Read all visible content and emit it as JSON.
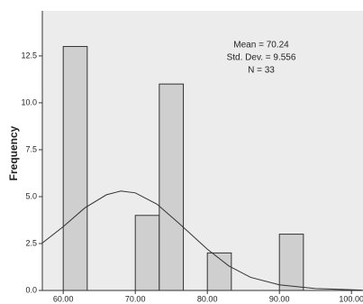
{
  "chart_data": {
    "type": "histogram",
    "y_label": "Frequency",
    "annotations": [
      "Mean = 70.24",
      "Std. Dev. = 9.556",
      "N = 33"
    ],
    "bins": [
      60,
      63.33,
      66.67,
      70,
      73.33,
      76.67,
      80,
      83.33,
      86.67,
      90,
      93.33
    ],
    "values": [
      13,
      0,
      0,
      4,
      11,
      0,
      2,
      0,
      0,
      3
    ],
    "color": "#cfcfcf",
    "curve": {
      "x": [
        57,
        60,
        63,
        66,
        68,
        70,
        73,
        76,
        80,
        83,
        86,
        90,
        95,
        101.5
      ],
      "values": [
        2.5,
        3.4,
        4.4,
        5.1,
        5.3,
        5.2,
        4.6,
        3.6,
        2.2,
        1.3,
        0.7,
        0.3,
        0.1,
        0.02
      ]
    },
    "xlim": [
      57.1,
      101.6
    ],
    "ylim": [
      0,
      14.9
    ],
    "xticks": [
      {
        "value": 60,
        "label": "60.00"
      },
      {
        "value": 70,
        "label": "70.00"
      },
      {
        "value": 80,
        "label": "80.00"
      },
      {
        "value": 90,
        "label": "90.00"
      },
      {
        "value": 100,
        "label": "100.00"
      }
    ],
    "yticks": [
      {
        "value": 0,
        "label": "0.0"
      },
      2.5,
      {
        "value": 5,
        "label": "5.0"
      },
      7.5,
      {
        "value": 10,
        "label": "10.0"
      },
      12.5
    ]
  }
}
